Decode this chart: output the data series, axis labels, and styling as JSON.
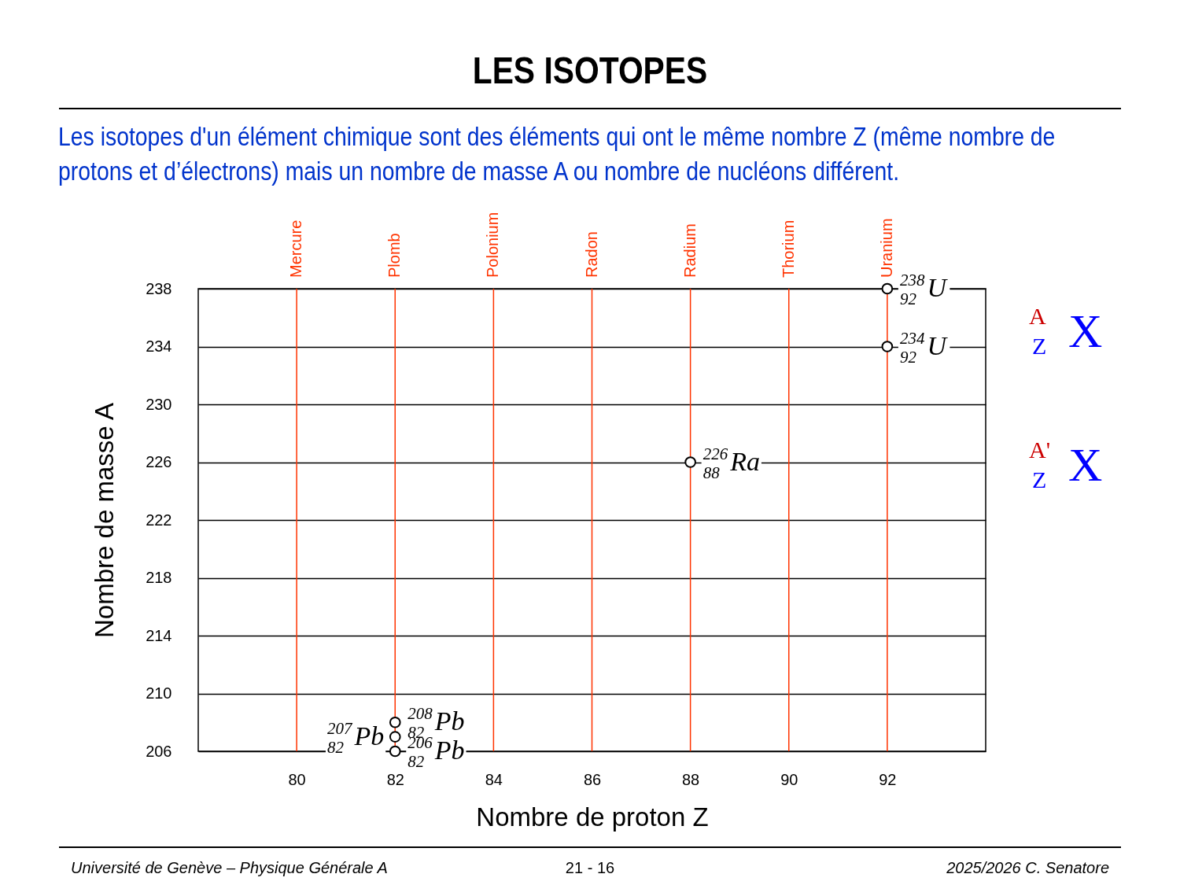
{
  "chart_data": {
    "type": "scatter",
    "title": "LES ISOTOPES",
    "subtitle": "Les isotopes d'un élément chimique sont des éléments qui ont le même nombre Z (même nombre de protons et d’électrons) mais un nombre de masse A ou nombre de nucléons différent.",
    "xlabel": "Nombre de proton Z",
    "ylabel": "Nombre de masse A",
    "series": [
      {
        "color": "#000000",
        "x": [
          82,
          82,
          82,
          88,
          92,
          92
        ],
        "values": [
          206,
          207,
          208,
          226,
          234,
          238
        ]
      }
    ],
    "marker": "circle",
    "grid": "y",
    "xlim": [
      78,
      94
    ],
    "xticks": [
      80,
      82,
      84,
      86,
      88,
      90,
      92
    ],
    "ylim": [
      206,
      238
    ],
    "yticks": [
      206,
      210,
      214,
      218,
      222,
      226,
      230,
      234,
      238
    ],
    "ref_lines": [
      {
        "axis": "x",
        "value": 80,
        "label": "Mercure",
        "color": "#ff3300"
      },
      {
        "axis": "x",
        "value": 82,
        "label": "Plomb",
        "color": "#ff3300"
      },
      {
        "axis": "x",
        "value": 84,
        "label": "Polonium",
        "color": "#ff3300"
      },
      {
        "axis": "x",
        "value": 86,
        "label": "Radon",
        "color": "#ff3300"
      },
      {
        "axis": "x",
        "value": 88,
        "label": "Radium",
        "color": "#ff3300"
      },
      {
        "axis": "x",
        "value": 90,
        "label": "Thorium",
        "color": "#ff3300"
      },
      {
        "axis": "x",
        "value": 92,
        "label": "Uranium",
        "color": "#ff3300"
      }
    ],
    "annotations": [
      {
        "text": "$^{206}$$_{82}$Pb",
        "x": 82,
        "y": 206
      },
      {
        "text": "$^{207}$$_{82}$Pb",
        "x": 82,
        "y": 207
      },
      {
        "text": "$^{208}$$_{82}$Pb",
        "x": 82,
        "y": 208
      },
      {
        "text": "$^{226}$$_{88}$Ra",
        "x": 88,
        "y": 226
      },
      {
        "text": "$^{234}$$_{92}$U",
        "x": 92,
        "y": 234
      },
      {
        "text": "$^{238}$$_{92}$U",
        "x": 92,
        "y": 238
      },
      "$^{A}$$_{Z}$X",
      "$^{A'}$$_{Z}$X",
      "Université de Genève – Physique Générale A",
      "21 - 16",
      "2025/2026  C. Senatore"
    ]
  }
}
